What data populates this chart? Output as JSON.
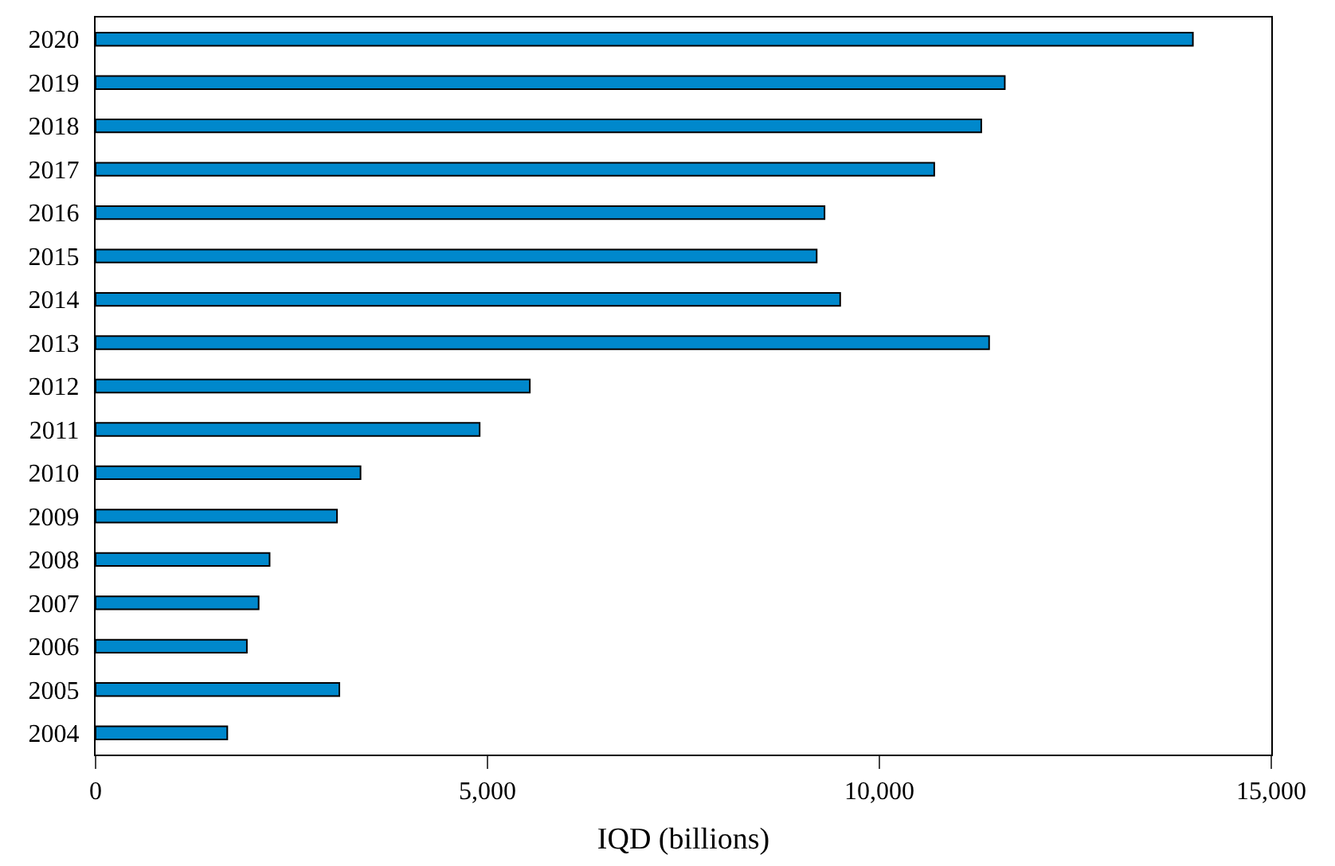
{
  "chart_data": {
    "type": "bar",
    "orientation": "horizontal",
    "xlabel": "IQD (billions)",
    "categories": [
      "2020",
      "2019",
      "2018",
      "2017",
      "2016",
      "2015",
      "2014",
      "2013",
      "2012",
      "2011",
      "2010",
      "2009",
      "2008",
      "2007",
      "2006",
      "2005",
      "2004"
    ],
    "values": [
      14000,
      11600,
      11300,
      10700,
      9300,
      9200,
      9500,
      11400,
      5540,
      4900,
      3380,
      3080,
      2220,
      2080,
      1930,
      3110,
      1680
    ],
    "color": "#0088cc",
    "xlim": [
      0,
      15000
    ],
    "xticks": [
      0,
      {
        "value": 5000,
        "label": "5,000"
      },
      {
        "value": 10000,
        "label": "10,000"
      },
      {
        "value": 15000,
        "label": "15,000"
      }
    ]
  }
}
